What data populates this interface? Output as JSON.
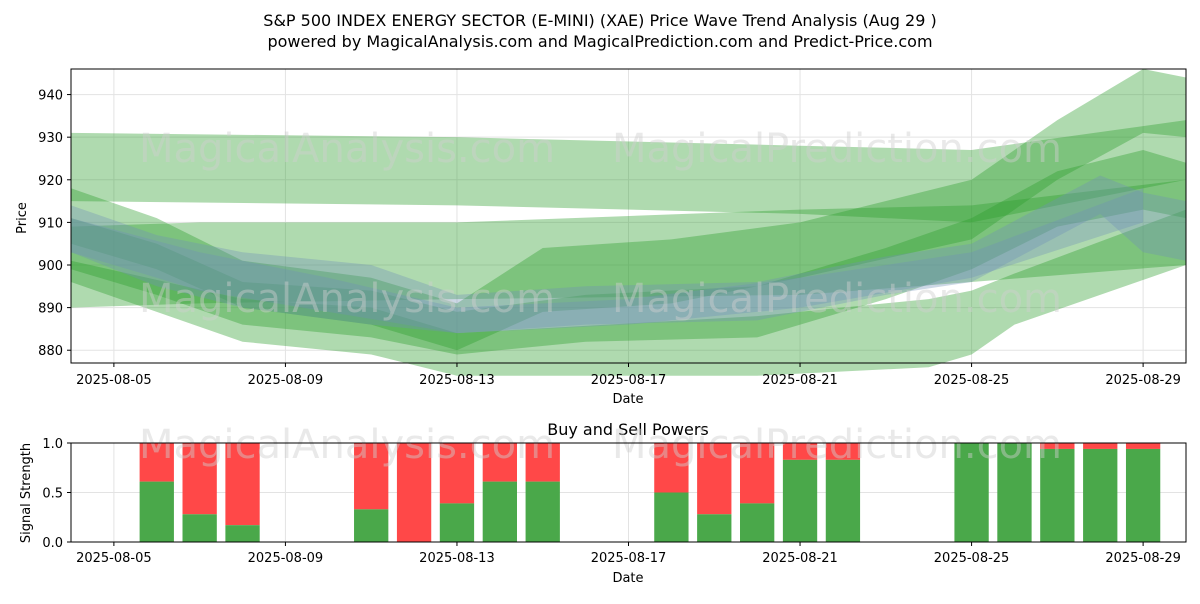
{
  "page": {
    "title_line1": "S&P 500 INDEX ENERGY SECTOR (E-MINI) (XAE) Price Wave Trend Analysis (Aug 29 )",
    "title_line2": "powered by MagicalAnalysis.com and MagicalPrediction.com and Predict-Price.com",
    "watermark_1": "MagicalAnalysis.com",
    "watermark_2": "MagicalPrediction.com"
  },
  "colors": {
    "green_band": "#2e9e2e",
    "blue_band": "#6f8fb8",
    "buy": "#4aa84a",
    "sell": "#ff4848",
    "grid": "#e3e3e3"
  },
  "chart_data": [
    {
      "type": "area",
      "title": "",
      "xlabel": "Date",
      "ylabel": "Price",
      "xlim": [
        "2025-08-04",
        "2025-08-30"
      ],
      "ylim": [
        877,
        946
      ],
      "grid": true,
      "xticks": [
        "2025-08-05",
        "2025-08-09",
        "2025-08-13",
        "2025-08-17",
        "2025-08-21",
        "2025-08-25",
        "2025-08-29"
      ],
      "yticks": [
        880,
        890,
        900,
        910,
        920,
        930,
        940
      ],
      "series": [
        {
          "color": "green",
          "x": [
            "2025-08-04",
            "2025-08-13",
            "2025-08-21",
            "2025-08-25",
            "2025-08-30"
          ],
          "upper": [
            931,
            930,
            928,
            927,
            934
          ],
          "lower": [
            915,
            914,
            912,
            910,
            920
          ]
        },
        {
          "color": "green",
          "x": [
            "2025-08-04",
            "2025-08-07",
            "2025-08-13",
            "2025-08-21",
            "2025-08-25",
            "2025-08-30"
          ],
          "upper": [
            909,
            910,
            910,
            913,
            914,
            920
          ],
          "lower": [
            890,
            891,
            892,
            893,
            896,
            900
          ]
        },
        {
          "color": "green",
          "x": [
            "2025-08-04",
            "2025-08-08",
            "2025-08-11",
            "2025-08-13",
            "2025-08-20",
            "2025-08-24",
            "2025-08-25",
            "2025-08-26",
            "2025-08-30"
          ],
          "upper": [
            901,
            892,
            890,
            884,
            888,
            892,
            894,
            898,
            913
          ],
          "lower": [
            896,
            882,
            879,
            874,
            874,
            876,
            879,
            886,
            900
          ]
        },
        {
          "color": "green",
          "x": [
            "2025-08-04",
            "2025-08-06",
            "2025-08-08",
            "2025-08-11",
            "2025-08-13",
            "2025-08-15",
            "2025-08-18",
            "2025-08-21",
            "2025-08-25",
            "2025-08-27",
            "2025-08-29",
            "2025-08-30"
          ],
          "upper": [
            918,
            911,
            901,
            897,
            891,
            904,
            906,
            910,
            920,
            934,
            946,
            944
          ],
          "lower": [
            905,
            899,
            890,
            886,
            880,
            889,
            891,
            897,
            906,
            920,
            931,
            930
          ]
        },
        {
          "color": "green",
          "x": [
            "2025-08-04",
            "2025-08-06",
            "2025-08-08",
            "2025-08-11",
            "2025-08-13",
            "2025-08-16",
            "2025-08-20",
            "2025-08-23",
            "2025-08-25",
            "2025-08-27",
            "2025-08-29",
            "2025-08-30"
          ],
          "upper": [
            911,
            905,
            896,
            894,
            889,
            893,
            895,
            904,
            911,
            922,
            927,
            924
          ],
          "lower": [
            899,
            893,
            886,
            883,
            879,
            882,
            883,
            892,
            899,
            909,
            913,
            911
          ]
        },
        {
          "color": "blue",
          "x": [
            "2025-08-04",
            "2025-08-06",
            "2025-08-08",
            "2025-08-11",
            "2025-08-13",
            "2025-08-16",
            "2025-08-20",
            "2025-08-23",
            "2025-08-25",
            "2025-08-28",
            "2025-08-29",
            "2025-08-30"
          ],
          "upper": [
            914,
            907,
            903,
            900,
            893,
            895,
            896,
            902,
            905,
            921,
            917,
            915
          ],
          "lower": [
            903,
            895,
            890,
            886,
            884,
            886,
            887,
            893,
            896,
            912,
            903,
            901
          ]
        },
        {
          "color": "blue",
          "x": [
            "2025-08-04",
            "2025-08-07",
            "2025-08-10",
            "2025-08-13",
            "2025-08-17",
            "2025-08-21",
            "2025-08-25",
            "2025-08-29"
          ],
          "upper": [
            911,
            903,
            897,
            890,
            892,
            897,
            903,
            918
          ],
          "lower": [
            903,
            894,
            889,
            884,
            886,
            890,
            897,
            910
          ]
        }
      ]
    },
    {
      "type": "bar",
      "title": "Buy and Sell Powers",
      "xlabel": "Date",
      "ylabel": "Signal Strength",
      "xlim": [
        "2025-08-04",
        "2025-08-30"
      ],
      "ylim": [
        0,
        1
      ],
      "grid": true,
      "xticks": [
        "2025-08-05",
        "2025-08-09",
        "2025-08-13",
        "2025-08-17",
        "2025-08-21",
        "2025-08-25",
        "2025-08-29"
      ],
      "yticks": [
        0.0,
        0.5,
        1.0
      ],
      "ytick_labels": [
        "0.0",
        "0.5",
        "1.0"
      ],
      "series_names": [
        "buy",
        "sell"
      ],
      "bars": [
        {
          "date": "2025-08-06",
          "buy": 0.61
        },
        {
          "date": "2025-08-07",
          "buy": 0.28
        },
        {
          "date": "2025-08-08",
          "buy": 0.17
        },
        {
          "date": "2025-08-11",
          "buy": 0.33
        },
        {
          "date": "2025-08-12",
          "buy": 0.0
        },
        {
          "date": "2025-08-13",
          "buy": 0.39
        },
        {
          "date": "2025-08-14",
          "buy": 0.61
        },
        {
          "date": "2025-08-15",
          "buy": 0.61
        },
        {
          "date": "2025-08-18",
          "buy": 0.5
        },
        {
          "date": "2025-08-19",
          "buy": 0.28
        },
        {
          "date": "2025-08-20",
          "buy": 0.39
        },
        {
          "date": "2025-08-21",
          "buy": 0.83
        },
        {
          "date": "2025-08-22",
          "buy": 0.83
        },
        {
          "date": "2025-08-25",
          "buy": 1.0
        },
        {
          "date": "2025-08-26",
          "buy": 1.0
        },
        {
          "date": "2025-08-27",
          "buy": 0.94
        },
        {
          "date": "2025-08-28",
          "buy": 0.94
        },
        {
          "date": "2025-08-29",
          "buy": 0.94
        }
      ]
    }
  ]
}
